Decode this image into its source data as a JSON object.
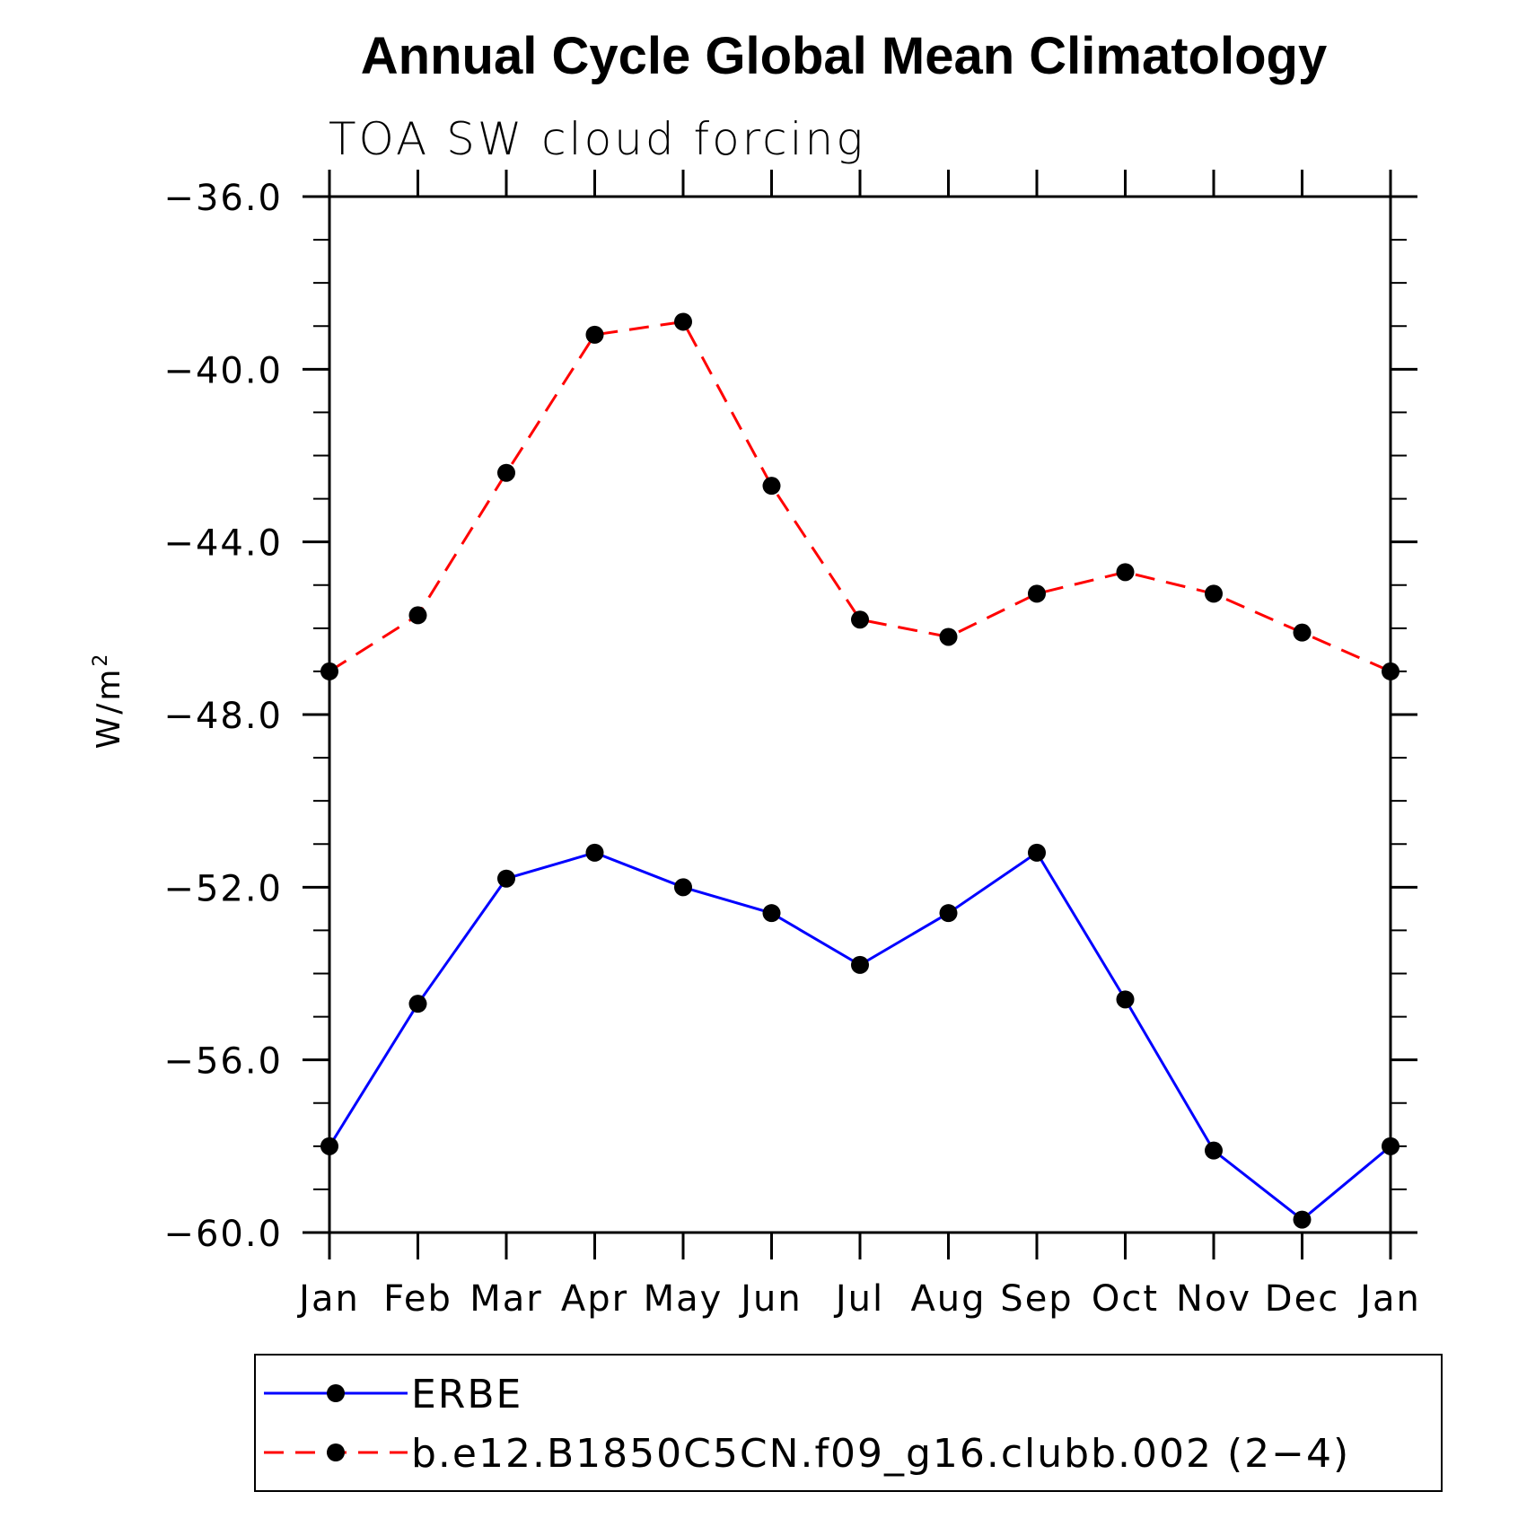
{
  "chart_data": {
    "type": "line",
    "title": "Annual Cycle Global Mean Climatology",
    "subtitle": "TOA SW cloud forcing",
    "ylabel": "W/m",
    "ylabel_superscript": "2",
    "xlabel": "",
    "categories": [
      "Jan",
      "Feb",
      "Mar",
      "Apr",
      "May",
      "Jun",
      "Jul",
      "Aug",
      "Sep",
      "Oct",
      "Nov",
      "Dec",
      "Jan"
    ],
    "ylim": [
      -60.0,
      -36.0
    ],
    "yticks": [
      -60.0,
      -56.0,
      -52.0,
      -48.0,
      -44.0,
      -40.0,
      -36.0
    ],
    "ytick_labels": [
      "−60.0",
      "−56.0",
      "−52.0",
      "−48.0",
      "−44.0",
      "−40.0",
      "−36.0"
    ],
    "grid": false,
    "legend_position": "bottom",
    "series": [
      {
        "name": "ERBE",
        "color": "#0000ff",
        "line_style": "solid",
        "marker": "filled-circle",
        "values": [
          -58.0,
          -54.7,
          -51.8,
          -51.2,
          -52.0,
          -52.6,
          -53.8,
          -52.6,
          -51.2,
          -54.6,
          -58.1,
          -59.7,
          -58.0
        ]
      },
      {
        "name": "b.e12.B1850C5CN.f09_g16.clubb.002 (2−4)",
        "color": "#ff0000",
        "line_style": "dashed",
        "marker": "filled-circle",
        "values": [
          -47.0,
          -45.7,
          -42.4,
          -39.2,
          -38.9,
          -42.7,
          -45.8,
          -46.2,
          -45.2,
          -44.7,
          -45.2,
          -46.1,
          -47.0
        ]
      }
    ]
  }
}
